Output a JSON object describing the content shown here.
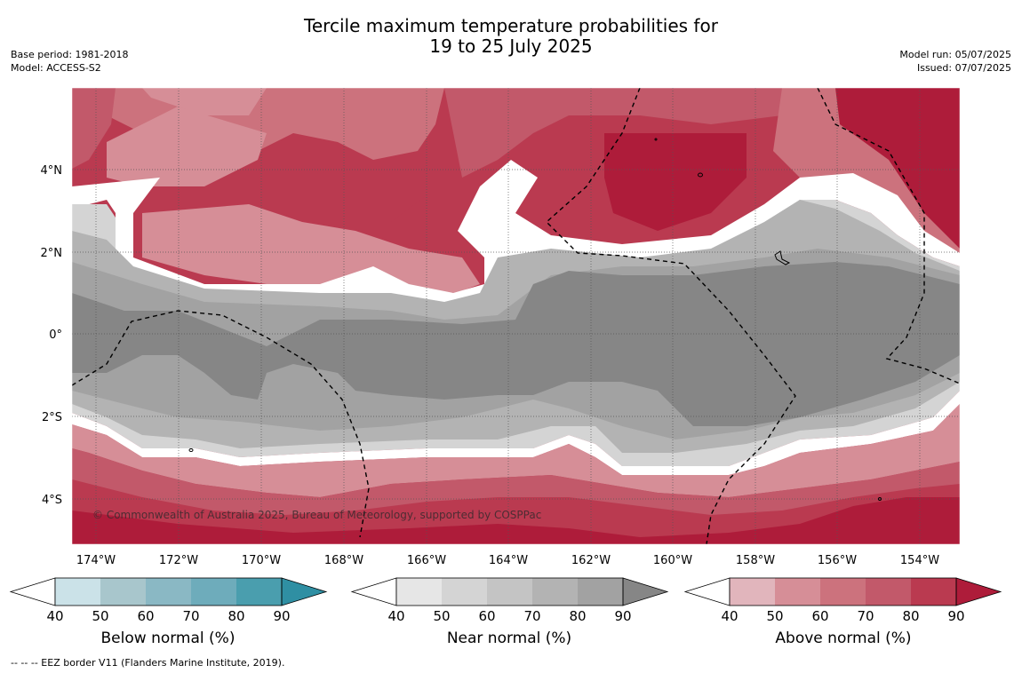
{
  "title": {
    "line1": "Tercile maximum temperature probabilities for",
    "line2": "19 to 25 July 2025"
  },
  "meta_left": {
    "base_period": "Base period: 1981-2018",
    "model": "Model: ACCESS-S2"
  },
  "meta_right": {
    "model_run": "Model run: 05/07/2025",
    "issued": "Issued: 07/07/2025"
  },
  "map": {
    "lon_ticks": [
      "174°W",
      "172°W",
      "170°W",
      "168°W",
      "166°W",
      "164°W",
      "162°W",
      "160°W",
      "158°W",
      "156°W",
      "154°W"
    ],
    "lat_ticks": [
      "4°N",
      "2°N",
      "0°",
      "2°S",
      "4°S"
    ],
    "copyright": "© Commonwealth of Australia 2025, Bureau of Meteorology, supported by COSPPac"
  },
  "colorbars": [
    {
      "label": "Below normal (%)",
      "ticks": [
        "40",
        "50",
        "60",
        "70",
        "80",
        "90"
      ],
      "colors": [
        "#cbe2e8",
        "#a8c6cc",
        "#8ab8c4",
        "#6eacbb",
        "#4a9eae",
        "#2f8fa3"
      ]
    },
    {
      "label": "Near normal (%)",
      "ticks": [
        "40",
        "50",
        "60",
        "70",
        "80",
        "90"
      ],
      "colors": [
        "#e6e6e6",
        "#d4d4d4",
        "#c4c4c4",
        "#b3b3b3",
        "#a2a2a2",
        "#868686"
      ]
    },
    {
      "label": "Above normal (%)",
      "ticks": [
        "40",
        "50",
        "60",
        "70",
        "80",
        "90"
      ],
      "colors": [
        "#e1b5bc",
        "#d68e97",
        "#cc727d",
        "#c2596a",
        "#ba3a50",
        "#ae1c3a"
      ]
    }
  ],
  "footnote": "--  --  -- EEZ border V11 (Flanders Marine Institute, 2019)."
}
